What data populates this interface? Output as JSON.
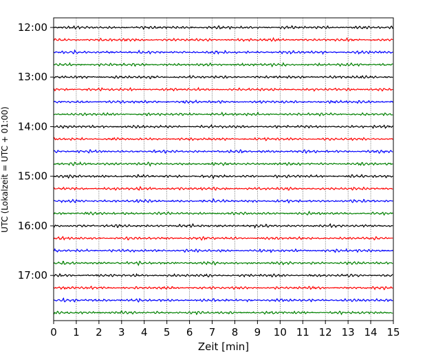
{
  "chart_data": {
    "type": "line",
    "title": "",
    "xlabel": "Zeit  [min]",
    "ylabel": "UTC (Lokalzeit = UTC + 01:00)",
    "xlim": [
      0,
      15
    ],
    "x_ticks": [
      0,
      1,
      2,
      3,
      4,
      5,
      6,
      7,
      8,
      9,
      10,
      11,
      12,
      13,
      14,
      15
    ],
    "x_tick_labels": [
      "0",
      "1",
      "2",
      "3",
      "4",
      "5",
      "6",
      "7",
      "8",
      "9",
      "10",
      "11",
      "12",
      "13",
      "14",
      "15"
    ],
    "y_ticks": [
      "12:00",
      "13:00",
      "14:00",
      "15:00",
      "16:00",
      "17:00"
    ],
    "ylim": [
      "17:57",
      "11:53"
    ],
    "grid": "vertical dotted",
    "trace_interval_min": 15,
    "start_time": "12:00",
    "trace_count": 24,
    "trace_colors": [
      "#000000",
      "#ff0000",
      "#0000ff",
      "#008000"
    ],
    "series_note": "",
    "traces": [
      {
        "time": "12:00",
        "color": "#000000"
      },
      {
        "time": "12:15",
        "color": "#ff0000"
      },
      {
        "time": "12:30",
        "color": "#0000ff"
      },
      {
        "time": "12:45",
        "color": "#008000"
      },
      {
        "time": "13:00",
        "color": "#000000"
      },
      {
        "time": "13:15",
        "color": "#ff0000"
      },
      {
        "time": "13:30",
        "color": "#0000ff"
      },
      {
        "time": "13:45",
        "color": "#008000"
      },
      {
        "time": "14:00",
        "color": "#000000"
      },
      {
        "time": "14:15",
        "color": "#ff0000"
      },
      {
        "time": "14:30",
        "color": "#0000ff"
      },
      {
        "time": "14:45",
        "color": "#008000"
      },
      {
        "time": "15:00",
        "color": "#000000"
      },
      {
        "time": "15:15",
        "color": "#ff0000"
      },
      {
        "time": "15:30",
        "color": "#0000ff"
      },
      {
        "time": "15:45",
        "color": "#008000"
      },
      {
        "time": "16:00",
        "color": "#000000"
      },
      {
        "time": "16:15",
        "color": "#ff0000"
      },
      {
        "time": "16:30",
        "color": "#0000ff"
      },
      {
        "time": "16:45",
        "color": "#008000"
      },
      {
        "time": "17:00",
        "color": "#000000"
      },
      {
        "time": "17:15",
        "color": "#ff0000"
      },
      {
        "time": "17:30",
        "color": "#0000ff"
      },
      {
        "time": "17:45",
        "color": "#008000"
      }
    ]
  }
}
